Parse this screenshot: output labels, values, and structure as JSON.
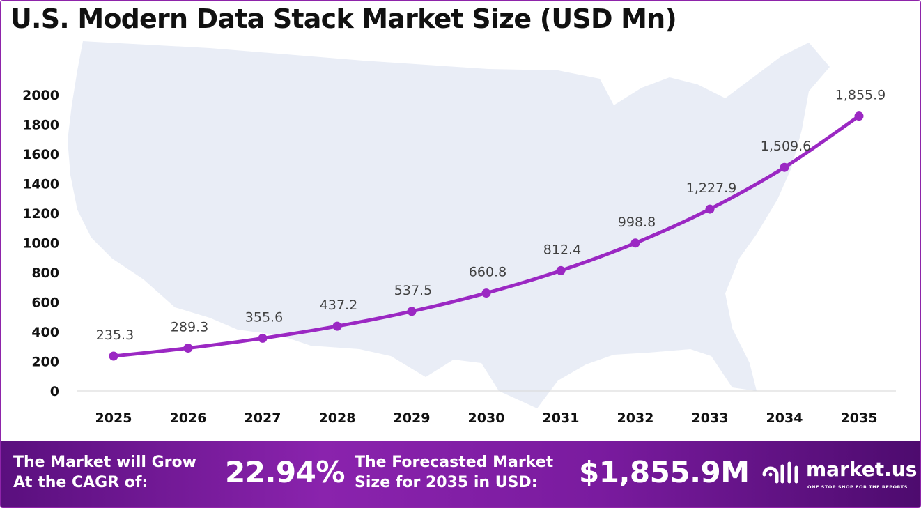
{
  "title": "U.S. Modern Data Stack Market Size (USD Mn)",
  "chart_data": {
    "type": "line",
    "categories": [
      "2025",
      "2026",
      "2027",
      "2028",
      "2029",
      "2030",
      "2031",
      "2032",
      "2033",
      "2034",
      "2035"
    ],
    "values": [
      235.3,
      289.3,
      355.6,
      437.2,
      537.5,
      660.8,
      812.4,
      998.8,
      1227.9,
      1509.6,
      1855.9
    ],
    "data_labels": [
      "235.3",
      "289.3",
      "355.6",
      "437.2",
      "537.5",
      "660.8",
      "812.4",
      "998.8",
      "1,227.9",
      "1,509.6",
      "1,855.9"
    ],
    "y_ticks": [
      "0",
      "200",
      "400",
      "600",
      "800",
      "1000",
      "1200",
      "1400",
      "1600",
      "1800",
      "2000"
    ],
    "ylim": [
      0,
      2000
    ],
    "grid": false,
    "legend": "none",
    "line_color": "#9b28c3",
    "background": "United States map silhouette"
  },
  "footer": {
    "cagr_label": "The Market will Grow\nAt the CAGR of:",
    "cagr_value": "22.94%",
    "forecast_label": "The Forecasted Market\nSize for 2035 in USD:",
    "forecast_value": "$1,855.9M",
    "brand_name": "market.us",
    "brand_tagline": "ONE STOP SHOP FOR THE REPORTS"
  },
  "colors": {
    "accent": "#9b28c3",
    "footer_start": "#5a0f7e",
    "footer_end": "#4d0b6e",
    "map": "#e9edf6",
    "text": "#111111"
  }
}
